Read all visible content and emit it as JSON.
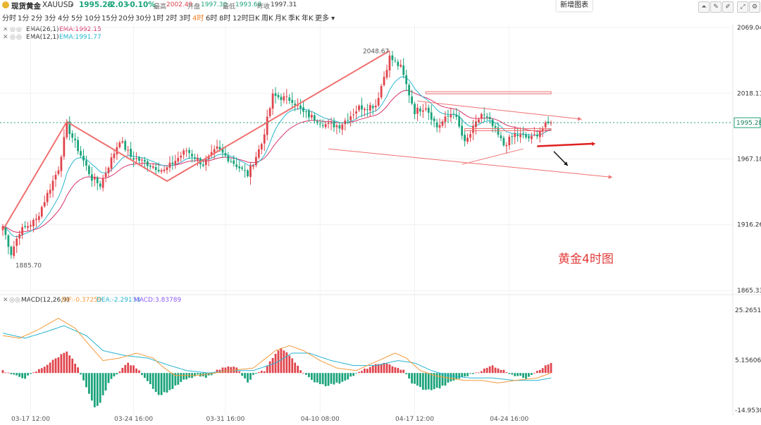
{
  "header": {
    "title": "现货黄金",
    "symbol": "XAUUSD",
    "price": "1995.28",
    "change": "-2.03",
    "change_pct": "-0.10%",
    "high_label": "最高",
    "high": "2002.49",
    "open_label": "开盘",
    "open": "1997.30",
    "low_label": "最低",
    "low": "1993.68",
    "prev_label": "昨收",
    "prev": "1997.31"
  },
  "timeframes": [
    "分时",
    "1分",
    "2分",
    "3分",
    "4分",
    "5分",
    "10分",
    "15分",
    "20分",
    "30分",
    "1时",
    "2时",
    "3时",
    "4时",
    "6时",
    "8时",
    "12时",
    "日K",
    "周K",
    "月K",
    "季K",
    "年K",
    "更多"
  ],
  "active_timeframe": "4时",
  "new_chart_label": "新增图表",
  "colors": {
    "up": "#e0444c",
    "down": "#1aa37a",
    "ema26": "#d6336c",
    "ema12": "#29b6d0",
    "dif": "#f59a3c",
    "dea": "#26b3d0",
    "macd_label": "#8b5cf6",
    "annotation": "#f07070",
    "price_line": "#21a07a"
  },
  "indicators": {
    "ema26": {
      "name": "EMA(26,1)",
      "label": "EMA:1992.15"
    },
    "ema12": {
      "name": "EMA(12,1)",
      "label": "EMA:1991.77"
    },
    "macd": {
      "name": "MACD(12,26,9)",
      "dif": "DIF:-0.37259",
      "dea": "DEA:-2.29153",
      "macd": "MACD:3.83789"
    }
  },
  "chart_data": [
    {
      "type": "candlestick",
      "price_axis_ticks": [
        2069.04,
        2018.11,
        1967.18,
        1916.26,
        1865.33
      ],
      "ylim": [
        1865.33,
        2069.04
      ],
      "current_price": "1995.28",
      "x_tick_labels": [
        "03-17 12:00",
        "03-24 16:00",
        "03-31 16:00",
        "04-10 08:00",
        "04-17 12:00",
        "04-24 16:00"
      ],
      "x_tick_bar_index": [
        10,
        47,
        80,
        114,
        148,
        182
      ],
      "price_annotations": [
        {
          "text": "2048.67",
          "price": 2048.67,
          "bar": 139
        },
        {
          "text": "1885.70",
          "price": 1885.7,
          "bar": 3
        }
      ],
      "annotation_text": "黄金4时图",
      "pattern_lines_price_bar": [
        [
          [
            0,
            1912
          ],
          [
            23,
            1996
          ],
          [
            59,
            1950
          ],
          [
            139,
            2051
          ]
        ],
        [
          [
            149,
            2012
          ],
          [
            208,
            1998
          ]
        ],
        [
          [
            117,
            1975
          ],
          [
            219,
            1953
          ]
        ],
        [
          [
            165,
            1963
          ],
          [
            187,
            1975
          ]
        ],
        [
          [
            192,
            1977
          ],
          [
            212,
            1979
          ]
        ]
      ],
      "anchors_price_bar": [
        [
          0,
          1915
        ],
        [
          3,
          1894
        ],
        [
          6,
          1911
        ],
        [
          12,
          1920
        ],
        [
          20,
          1960
        ],
        [
          23,
          1993
        ],
        [
          32,
          1952
        ],
        [
          35,
          1947
        ],
        [
          42,
          1982
        ],
        [
          46,
          1969
        ],
        [
          58,
          1958
        ],
        [
          66,
          1974
        ],
        [
          72,
          1963
        ],
        [
          77,
          1975
        ],
        [
          88,
          1955
        ],
        [
          93,
          1979
        ],
        [
          97,
          2016
        ],
        [
          104,
          2013
        ],
        [
          108,
          2003
        ],
        [
          116,
          1994
        ],
        [
          121,
          1993
        ],
        [
          128,
          2007
        ],
        [
          134,
          2009
        ],
        [
          139,
          2046
        ],
        [
          143,
          2038
        ],
        [
          148,
          2004
        ],
        [
          152,
          2008
        ],
        [
          156,
          1992
        ],
        [
          162,
          2004
        ],
        [
          166,
          1979
        ],
        [
          172,
          2002
        ],
        [
          175,
          1996
        ],
        [
          180,
          1978
        ],
        [
          184,
          1986
        ],
        [
          190,
          1983
        ],
        [
          195,
          1993
        ],
        [
          197,
          1995.28
        ]
      ]
    },
    {
      "type": "macd",
      "y_axis_ticks": [
        25.26514,
        5.15606,
        -14.95301
      ],
      "ylim": [
        -14.95301,
        25.26514
      ],
      "macd_anchors_bar": [
        [
          0,
          1
        ],
        [
          4,
          -1
        ],
        [
          8,
          -2
        ],
        [
          14,
          2
        ],
        [
          18,
          5
        ],
        [
          23,
          9
        ],
        [
          27,
          2
        ],
        [
          30,
          -6
        ],
        [
          33,
          -14
        ],
        [
          35,
          -12
        ],
        [
          38,
          -4
        ],
        [
          42,
          1
        ],
        [
          45,
          4
        ],
        [
          48,
          2
        ],
        [
          52,
          -3
        ],
        [
          56,
          -9
        ],
        [
          60,
          -7
        ],
        [
          65,
          -3
        ],
        [
          70,
          -1
        ],
        [
          73,
          -2
        ],
        [
          77,
          1
        ],
        [
          81,
          3
        ],
        [
          84,
          2
        ],
        [
          86,
          -1
        ],
        [
          88,
          -4
        ],
        [
          90,
          -1
        ],
        [
          94,
          1
        ],
        [
          98,
          8
        ],
        [
          100,
          10
        ],
        [
          104,
          6
        ],
        [
          108,
          0
        ],
        [
          111,
          -3
        ],
        [
          116,
          -5
        ],
        [
          121,
          -4
        ],
        [
          126,
          -1
        ],
        [
          131,
          2
        ],
        [
          136,
          4
        ],
        [
          140,
          3
        ],
        [
          144,
          1
        ],
        [
          147,
          -4
        ],
        [
          152,
          -7
        ],
        [
          157,
          -6
        ],
        [
          162,
          -3
        ],
        [
          167,
          -1
        ],
        [
          172,
          1
        ],
        [
          176,
          3
        ],
        [
          180,
          1
        ],
        [
          184,
          -1
        ],
        [
          188,
          -2
        ],
        [
          192,
          1
        ],
        [
          197,
          4
        ]
      ],
      "dif_anchors_bar": [
        [
          0,
          15
        ],
        [
          6,
          14
        ],
        [
          12,
          17
        ],
        [
          20,
          22
        ],
        [
          26,
          18
        ],
        [
          32,
          10
        ],
        [
          36,
          5
        ],
        [
          42,
          6
        ],
        [
          48,
          8
        ],
        [
          54,
          6
        ],
        [
          58,
          2
        ],
        [
          62,
          -1
        ],
        [
          70,
          -1
        ],
        [
          76,
          0
        ],
        [
          82,
          1
        ],
        [
          90,
          2
        ],
        [
          98,
          9
        ],
        [
          103,
          11
        ],
        [
          108,
          9
        ],
        [
          114,
          5
        ],
        [
          120,
          2
        ],
        [
          127,
          1
        ],
        [
          135,
          5
        ],
        [
          141,
          8
        ],
        [
          145,
          6
        ],
        [
          150,
          1
        ],
        [
          155,
          -1
        ],
        [
          160,
          -2
        ],
        [
          166,
          -3
        ],
        [
          172,
          -3
        ],
        [
          178,
          -4
        ],
        [
          184,
          -3
        ],
        [
          192,
          -2
        ],
        [
          197,
          0
        ]
      ],
      "dea_anchors_bar": [
        [
          0,
          16
        ],
        [
          8,
          14
        ],
        [
          14,
          16
        ],
        [
          22,
          19
        ],
        [
          30,
          15
        ],
        [
          36,
          9
        ],
        [
          44,
          7
        ],
        [
          52,
          6
        ],
        [
          60,
          3
        ],
        [
          66,
          1
        ],
        [
          74,
          0
        ],
        [
          82,
          1
        ],
        [
          90,
          1
        ],
        [
          98,
          4
        ],
        [
          104,
          8
        ],
        [
          110,
          8
        ],
        [
          118,
          5
        ],
        [
          126,
          3
        ],
        [
          134,
          3
        ],
        [
          142,
          5
        ],
        [
          148,
          4
        ],
        [
          154,
          1
        ],
        [
          160,
          -1
        ],
        [
          168,
          -2
        ],
        [
          176,
          -2
        ],
        [
          184,
          -3
        ],
        [
          192,
          -3
        ],
        [
          197,
          -2
        ]
      ]
    }
  ]
}
